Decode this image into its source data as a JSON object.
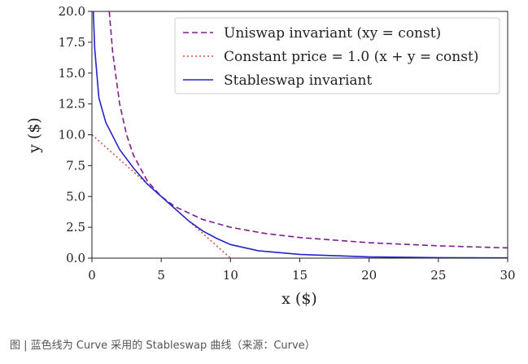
{
  "chart_data": {
    "type": "line",
    "xlabel": "x ($)",
    "ylabel": "y ($)",
    "xlim": [
      0,
      30
    ],
    "ylim": [
      0,
      20
    ],
    "xticks": [
      0,
      5,
      10,
      15,
      20,
      25,
      30
    ],
    "yticks": [
      {
        "value": 0,
        "label": "0.0"
      },
      {
        "value": 2.5,
        "label": "2.5"
      },
      {
        "value": 5,
        "label": "5.0"
      },
      {
        "value": 7.5,
        "label": "7.5"
      },
      {
        "value": 10,
        "label": "10.0"
      },
      {
        "value": 12.5,
        "label": "12.5"
      },
      {
        "value": 15,
        "label": "15.0"
      },
      {
        "value": 17.5,
        "label": "17.5"
      },
      {
        "value": 20,
        "label": "20.0"
      }
    ],
    "legend_position": "upper right",
    "series": [
      {
        "name": "Uniswap invariant (xy = const)",
        "color": "#7a1d8e",
        "line_style": "dashed",
        "x": [
          1.25,
          1.5,
          2,
          2.5,
          3,
          4,
          5,
          6,
          8,
          10,
          12.5,
          15,
          20,
          25,
          30
        ],
        "values": [
          20,
          16.67,
          12.5,
          10,
          8.33,
          6.25,
          5,
          4.17,
          3.13,
          2.5,
          2,
          1.67,
          1.25,
          1,
          0.83
        ]
      },
      {
        "name": "Constant price = 1.0 (x + y = const)",
        "color": "#e0503c",
        "line_style": "dotted",
        "x": [
          0,
          10
        ],
        "values": [
          10,
          0
        ]
      },
      {
        "name": "Stableswap invariant",
        "color": "#2424c8",
        "line_style": "solid",
        "x": [
          0.1,
          0.2,
          0.5,
          1,
          2,
          3,
          4,
          5,
          6,
          7,
          8,
          9,
          10,
          12,
          15,
          20,
          25,
          30
        ],
        "values": [
          20,
          17,
          13,
          11,
          8.8,
          7.3,
          6,
          5,
          4,
          3,
          2.2,
          1.6,
          1.1,
          0.6,
          0.3,
          0.1,
          0.04,
          0.02
        ]
      }
    ]
  },
  "caption": "图 | 蓝色线为 Curve 采用的 Stableswap 曲线（来源：Curve）"
}
